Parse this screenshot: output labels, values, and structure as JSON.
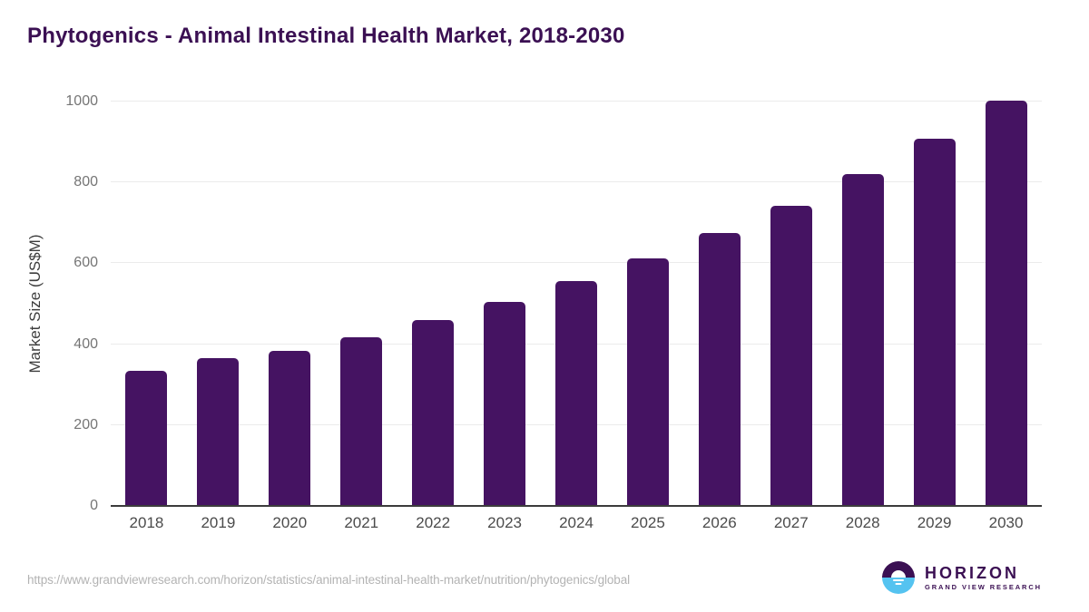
{
  "header": {
    "title": "Phytogenics - Animal Intestinal Health Market, 2018-2030"
  },
  "chart_data": {
    "type": "bar",
    "title": "Phytogenics - Animal Intestinal Health Market, 2018-2030",
    "categories": [
      "2018",
      "2019",
      "2020",
      "2021",
      "2022",
      "2023",
      "2024",
      "2025",
      "2026",
      "2027",
      "2028",
      "2029",
      "2030"
    ],
    "values": [
      335,
      365,
      384,
      416,
      459,
      504,
      556,
      612,
      674,
      743,
      820,
      908,
      1003
    ],
    "xlabel": "",
    "ylabel": "Market Size (US$M)",
    "ylim": [
      0,
      1000
    ],
    "yticks": [
      0,
      200,
      400,
      600,
      800,
      1000
    ],
    "grid": true,
    "legend": "none",
    "bar_color": "#451362"
  },
  "colors": {
    "title": "#3b1053",
    "bar": "#451362",
    "gridline": "#ebebeb",
    "axis_line": "#3c3c3c",
    "y_tick_text": "#757575",
    "x_tick_text": "#4b4b4b",
    "url_text": "#b3b3b3",
    "logo_blue": "#55c3f0"
  },
  "footer": {
    "source_url": "https://www.grandviewresearch.com/horizon/statistics/animal-intestinal-health-market/nutrition/phytogenics/global",
    "logo": {
      "name": "HORIZON",
      "subtitle": "GRAND VIEW RESEARCH"
    }
  }
}
